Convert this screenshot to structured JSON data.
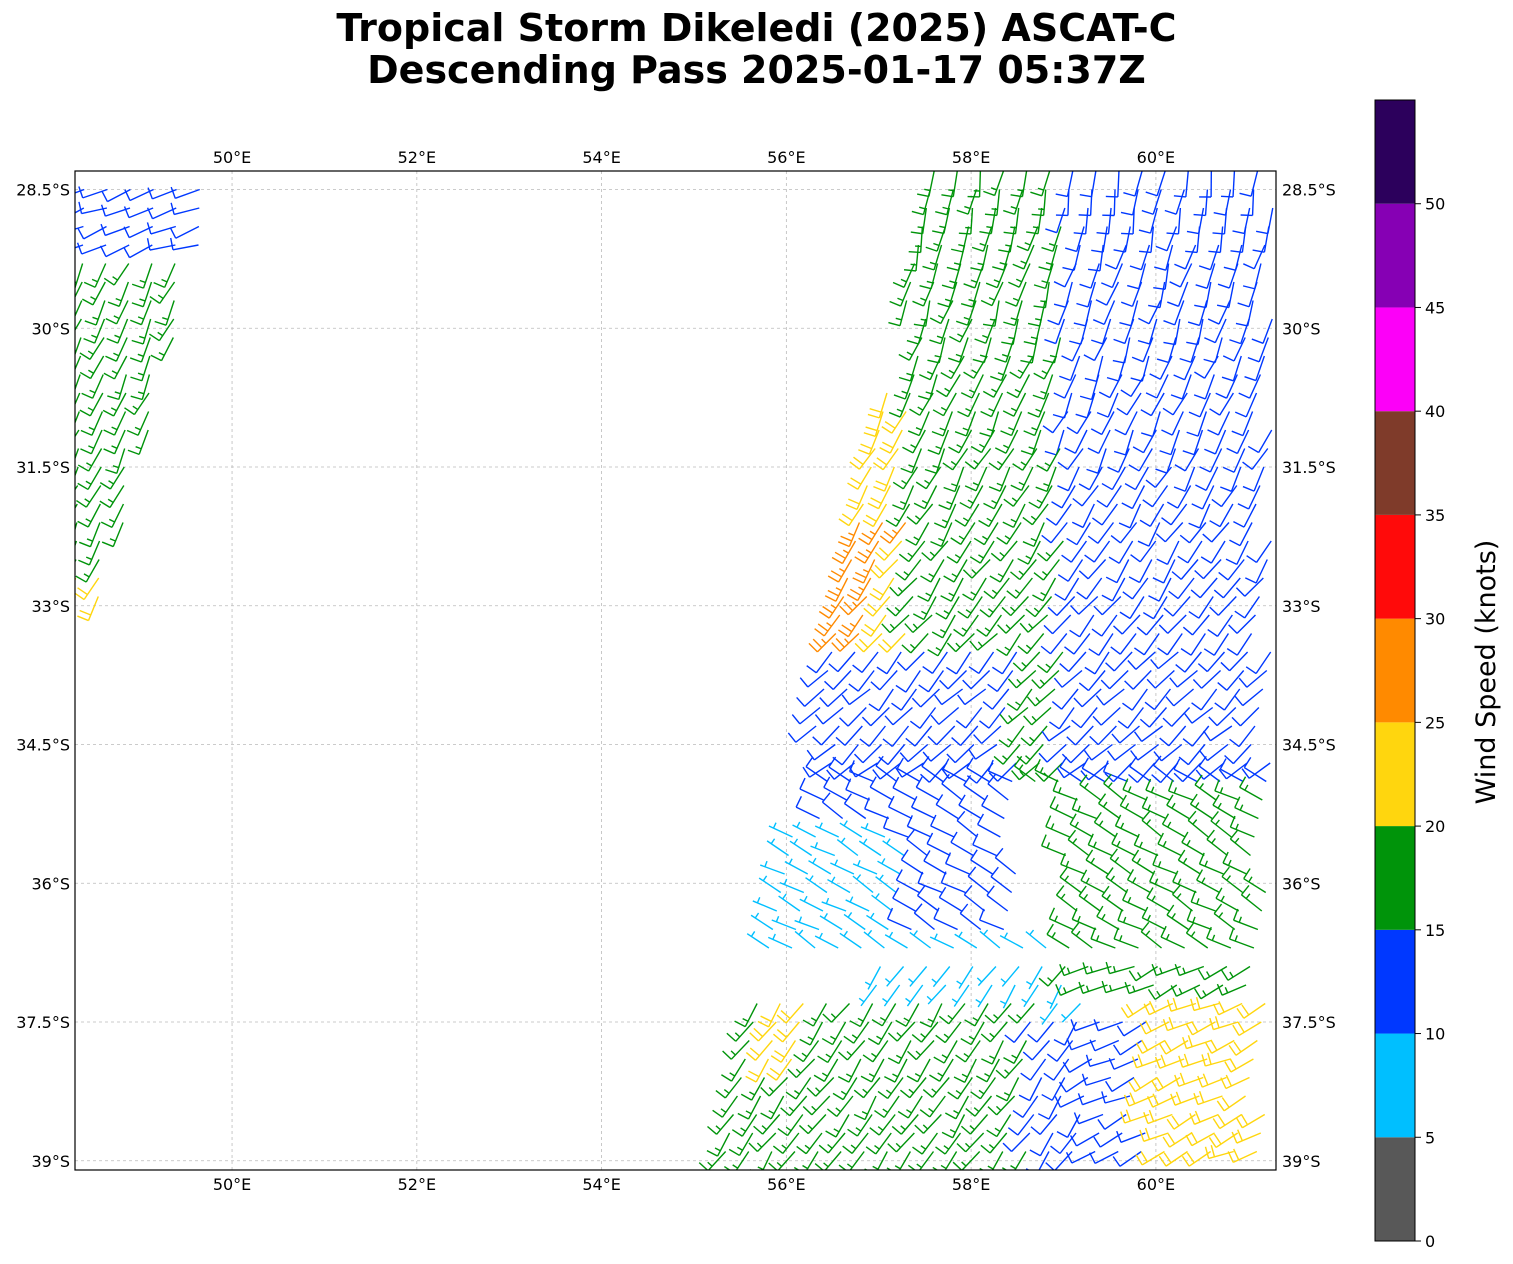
{
  "title": {
    "line1": "Tropical Storm Dikeledi (2025) ASCAT-C",
    "line2": "Descending Pass 2025-01-17 05:37Z"
  },
  "map": {
    "lon_range": [
      48.3,
      61.3
    ],
    "lat_range": [
      -39.1,
      -28.3
    ],
    "lon_ticks": [
      50,
      52,
      54,
      56,
      58,
      60
    ],
    "lon_tick_labels": [
      "50°E",
      "52°E",
      "54°E",
      "56°E",
      "58°E",
      "60°E"
    ],
    "lat_ticks": [
      -28.5,
      -30,
      -31.5,
      -33,
      -34.5,
      -36,
      -37.5,
      -39
    ],
    "lat_tick_labels": [
      "28.5°S",
      "30°S",
      "31.5°S",
      "33°S",
      "34.5°S",
      "36°S",
      "37.5°S",
      "39°S"
    ],
    "gridlines": "dashed-gray"
  },
  "colorbar": {
    "label": "Wind Speed (knots)",
    "bins": [
      {
        "min": 0,
        "max": 5,
        "color": "#585858"
      },
      {
        "min": 5,
        "max": 10,
        "color": "#00bfff"
      },
      {
        "min": 10,
        "max": 15,
        "color": "#0038ff"
      },
      {
        "min": 15,
        "max": 20,
        "color": "#00940a"
      },
      {
        "min": 20,
        "max": 25,
        "color": "#ffd60e"
      },
      {
        "min": 25,
        "max": 30,
        "color": "#ff8a00"
      },
      {
        "min": 30,
        "max": 35,
        "color": "#ff0a0a"
      },
      {
        "min": 35,
        "max": 40,
        "color": "#7f3b2a"
      },
      {
        "min": 40,
        "max": 45,
        "color": "#fc00f8"
      },
      {
        "min": 45,
        "max": 50,
        "color": "#8600b4"
      },
      {
        "min": 50,
        "max": 55,
        "color": "#2c005c"
      }
    ],
    "tick_values": [
      0,
      5,
      10,
      15,
      20,
      25,
      30,
      35,
      40,
      45,
      50
    ],
    "tick_labels": [
      "0",
      "5",
      "10",
      "15",
      "20",
      "25",
      "30",
      "35",
      "40",
      "45",
      "50"
    ]
  },
  "swaths": [
    {
      "name": "west-swath",
      "lat_top": -28.5,
      "lat_bottom": -33.0,
      "lon_left_top": 48.4,
      "lon_right_top": 49.8,
      "lon_left_bottom": 48.3,
      "lon_right_bottom": 48.6
    },
    {
      "name": "east-swath",
      "lat_top": -28.3,
      "lat_bottom": -39.1,
      "lon_left_top": 57.6,
      "lon_right_top": 61.3,
      "lon_left_bottom": 55.3,
      "lon_right_bottom": 61.2
    }
  ],
  "wind_regions": [
    {
      "swath": "west-swath",
      "lat": [
        -28.5,
        -29.2
      ],
      "speed_kt": 12
    },
    {
      "swath": "west-swath",
      "lat": [
        -29.2,
        -32.6
      ],
      "speed_kt": 17
    },
    {
      "swath": "west-swath",
      "lat": [
        -32.6,
        -33.0
      ],
      "speed_kt": 22
    },
    {
      "swath": "east-swath",
      "lat": [
        -30.5,
        -32.0
      ],
      "lon": [
        56.8,
        57.3
      ],
      "speed_kt": 22
    },
    {
      "swath": "east-swath",
      "lat": [
        -32.0,
        -34.0
      ],
      "lon": [
        56.4,
        57.3
      ],
      "speed_kt": 27
    },
    {
      "swath": "east-swath",
      "lat": [
        -32.2,
        -34.4
      ],
      "lon": [
        57.0,
        58.2
      ],
      "speed_kt": 22
    },
    {
      "swath": "east-swath",
      "lat": [
        -28.3,
        -35.0
      ],
      "lon": [
        57.3,
        59.0
      ],
      "speed_kt": 17
    },
    {
      "swath": "east-swath",
      "lat": [
        -28.3,
        -35.5
      ],
      "lon": [
        59.0,
        61.3
      ],
      "speed_kt": 12
    },
    {
      "swath": "east-swath",
      "lat": [
        -33.5,
        -36.8
      ],
      "lon": [
        56.3,
        58.5
      ],
      "speed_kt": 12
    },
    {
      "swath": "east-swath",
      "lat": [
        -35.5,
        -36.8
      ],
      "lon": [
        55.8,
        57.3
      ],
      "speed_kt": 7
    },
    {
      "swath": "east-swath",
      "lat": [
        -36.6,
        -37.6
      ],
      "lon": [
        56.8,
        59.3
      ],
      "speed_kt": 7
    },
    {
      "swath": "east-swath",
      "lat": [
        -35.0,
        -37.2
      ],
      "lon": [
        59.0,
        61.3
      ],
      "speed_kt": 17
    },
    {
      "swath": "east-swath",
      "lat": [
        -37.2,
        -39.1
      ],
      "lon": [
        55.3,
        58.8
      ],
      "speed_kt": 17
    },
    {
      "swath": "east-swath",
      "lat": [
        -37.3,
        -38.0
      ],
      "lon": [
        55.7,
        56.2
      ],
      "speed_kt": 22
    },
    {
      "swath": "east-swath",
      "lat": [
        -37.4,
        -39.1
      ],
      "lon": [
        58.6,
        60.0
      ],
      "speed_kt": 12
    },
    {
      "swath": "east-swath",
      "lat": [
        -37.2,
        -39.1
      ],
      "lon": [
        59.9,
        61.2
      ],
      "speed_kt": 22
    }
  ]
}
